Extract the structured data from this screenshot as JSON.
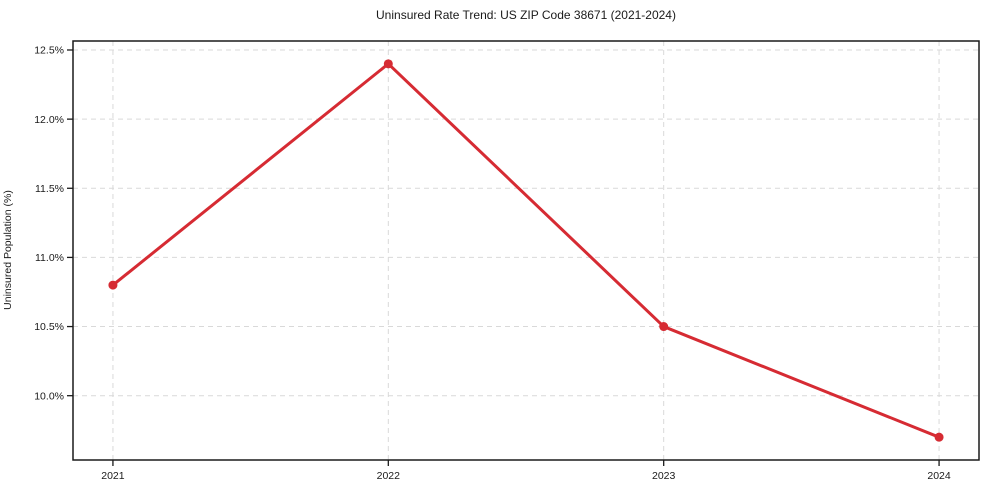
{
  "chart_data": {
    "type": "line",
    "title": "Uninsured Rate Trend: US ZIP Code 38671 (2021-2024)",
    "xlabel": "",
    "ylabel": "Uninsured Population (%)",
    "x": [
      2021,
      2022,
      2023,
      2024
    ],
    "x_tick_labels": [
      "2021",
      "2022",
      "2023",
      "2024"
    ],
    "series": [
      {
        "name": "uninsured-rate",
        "values": [
          10.8,
          12.4,
          10.5,
          9.7
        ]
      }
    ],
    "y_ticks": [
      10.0,
      10.5,
      11.0,
      11.5,
      12.0,
      12.5
    ],
    "y_tick_labels": [
      "10.0%",
      "10.5%",
      "11.0%",
      "11.5%",
      "12.0%",
      "12.5%"
    ],
    "xlim": [
      2020.855,
      2024.145
    ],
    "ylim": [
      9.535,
      12.565
    ],
    "grid": true,
    "legend_visible": false,
    "line_color": "#d62b33",
    "marker_color": "#d62b33",
    "grid_color": "#d9d9d9",
    "axis_color": "#1a1a1a",
    "background_color": "#ffffff"
  }
}
